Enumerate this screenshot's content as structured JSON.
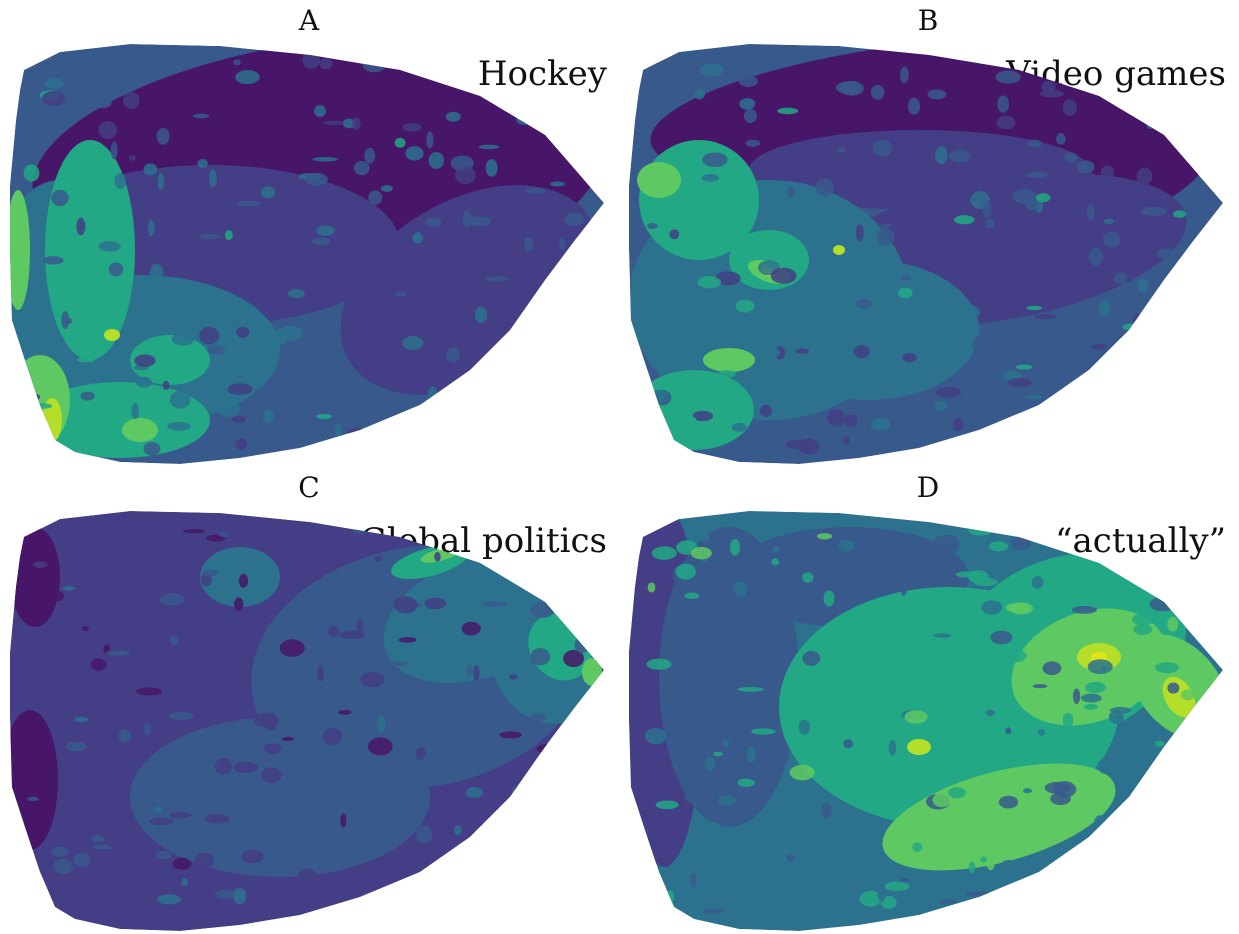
{
  "chart_data": [
    {
      "type": "heatmap",
      "panel": "A",
      "title": "Hockey",
      "colormap": "viridis",
      "high_regions": [
        "left edge",
        "bottom-left"
      ],
      "low_regions": [
        "top",
        "right"
      ],
      "levels": 7
    },
    {
      "type": "heatmap",
      "panel": "B",
      "title": "Video games",
      "colormap": "viridis",
      "high_regions": [
        "left edge",
        "center-left hotspots",
        "bottom-left"
      ],
      "low_regions": [
        "top",
        "top-right"
      ],
      "levels": 7
    },
    {
      "type": "heatmap",
      "panel": "C",
      "title": "Global politics",
      "colormap": "viridis",
      "high_regions": [
        "top-right edge",
        "right tip"
      ],
      "low_regions": [
        "left edge",
        "bottom-left"
      ],
      "levels": 7
    },
    {
      "type": "heatmap",
      "panel": "D",
      "title": "“actually”",
      "colormap": "viridis",
      "high_regions": [
        "right",
        "center-right"
      ],
      "low_regions": [
        "left edge"
      ],
      "levels": 7
    }
  ],
  "colors": {
    "viridis_0": "#481668",
    "viridis_1": "#433e85",
    "viridis_2": "#38598c",
    "viridis_3": "#2c728e",
    "viridis_4": "#22a884",
    "viridis_5": "#5ec962",
    "viridis_6": "#b5de2b",
    "viridis_7": "#dfe318"
  }
}
